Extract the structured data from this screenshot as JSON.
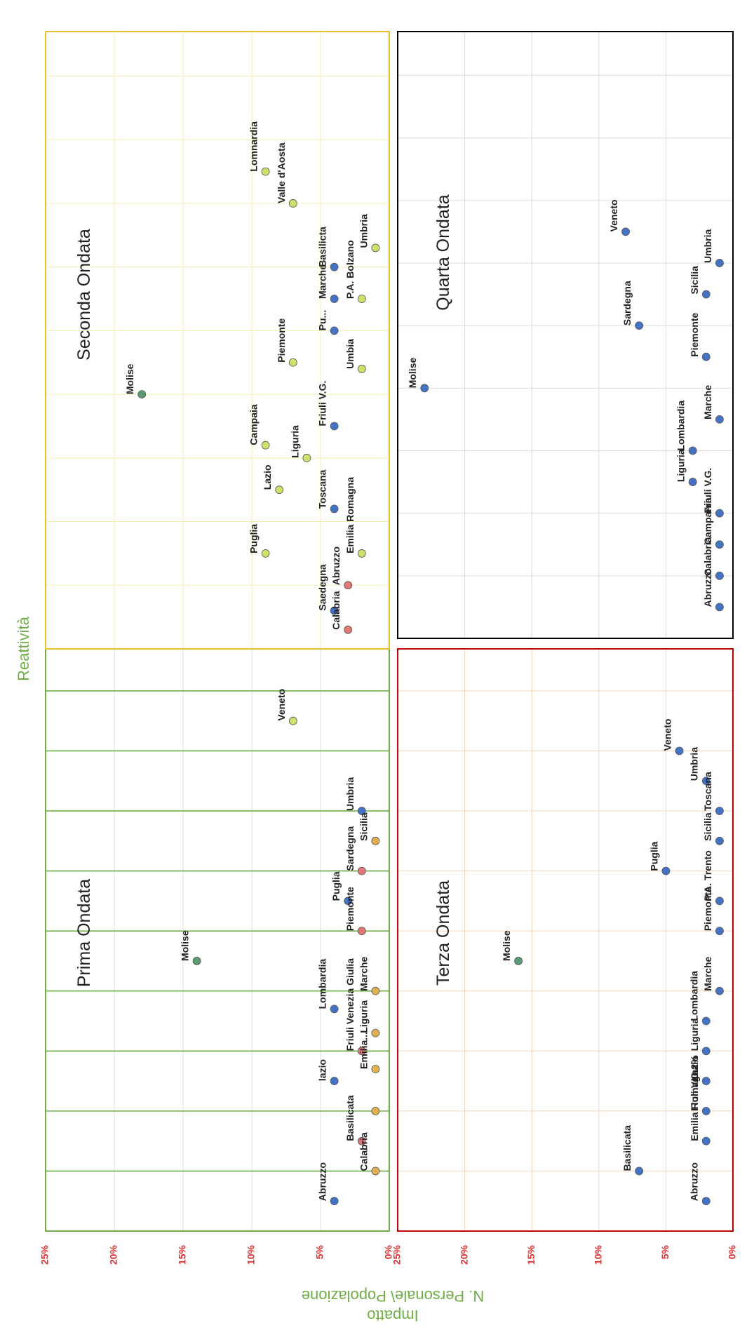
{
  "figure": {
    "title": "Reattività",
    "y_title_line1": "Impatto",
    "y_title_line2": "N. Personale\\ Popolazione",
    "y_ticks": [
      "0%",
      "5%",
      "10%",
      "15%",
      "20%",
      "25%"
    ]
  },
  "colors": {
    "blue": "#4472c4",
    "lightgreen": "#cce36b",
    "darkgreen": "#5b9b74",
    "red": "#e07777",
    "orange": "#e0b050",
    "axis_green": "#70ad47",
    "red_axis": "#e03030",
    "p1_frame": "#70ad47",
    "p2_frame": "#e6c02e",
    "p3_frame": "#c00000",
    "p4_frame": "#000000"
  },
  "chart_data": [
    {
      "type": "scatter",
      "title": "Prima Ondata",
      "ylim": [
        0,
        25
      ],
      "ylabel": "N. Personale\\ Popolazione",
      "grid": true,
      "x": [
        1,
        2,
        3,
        4,
        5,
        6,
        7,
        8,
        9,
        10,
        11
      ],
      "points": [
        {
          "label": "Abruzzo",
          "x": 0.5,
          "y": 4,
          "color": "blue"
        },
        {
          "label": "Basilicata",
          "x": 1.5,
          "y": 2,
          "color": "red"
        },
        {
          "label": "Calabria",
          "x": 1.0,
          "y": 1,
          "color": "orange"
        },
        {
          "label": "",
          "x": 2.0,
          "y": 1,
          "color": "orange"
        },
        {
          "label": "lazio",
          "x": 2.5,
          "y": 4,
          "color": "blue"
        },
        {
          "label": "Friuli Venezia Giulia",
          "x": 3.0,
          "y": 2,
          "color": "red"
        },
        {
          "label": "Emilia...",
          "x": 2.7,
          "y": 1,
          "color": "orange"
        },
        {
          "label": "Lombardia",
          "x": 3.7,
          "y": 4,
          "color": "blue"
        },
        {
          "label": "Liguria",
          "x": 3.3,
          "y": 1,
          "color": "orange"
        },
        {
          "label": "Molise",
          "x": 4.5,
          "y": 14,
          "color": "darkgreen"
        },
        {
          "label": "Marche",
          "x": 4.0,
          "y": 1,
          "color": "orange"
        },
        {
          "label": "Puglia",
          "x": 5.5,
          "y": 3,
          "color": "blue"
        },
        {
          "label": "Piemonte",
          "x": 5.0,
          "y": 2,
          "color": "red"
        },
        {
          "label": "Sardegna",
          "x": 6.0,
          "y": 2,
          "color": "red"
        },
        {
          "label": "Sicilia",
          "x": 6.5,
          "y": 1,
          "color": "orange"
        },
        {
          "label": "Umbria",
          "x": 7.0,
          "y": 2,
          "color": "blue"
        },
        {
          "label": "Veneto",
          "x": 8.5,
          "y": 7,
          "color": "lightgreen"
        }
      ]
    },
    {
      "type": "scatter",
      "title": "Seconda Ondata",
      "ylim": [
        0,
        25
      ],
      "grid": true,
      "points": [
        {
          "label": "Saedegna",
          "x": 0.6,
          "y": 4,
          "color": "blue"
        },
        {
          "label": "Calabria",
          "x": 0.3,
          "y": 3,
          "color": "red"
        },
        {
          "label": "Abruzzo",
          "x": 1.0,
          "y": 3,
          "color": "red"
        },
        {
          "label": "Puglia",
          "x": 1.5,
          "y": 9,
          "color": "lightgreen"
        },
        {
          "label": "Emilia Romagna",
          "x": 1.5,
          "y": 2,
          "color": "lightgreen"
        },
        {
          "label": "Toscana",
          "x": 2.2,
          "y": 4,
          "color": "blue"
        },
        {
          "label": "Lazio",
          "x": 2.5,
          "y": 8,
          "color": "lightgreen"
        },
        {
          "label": "Liguria",
          "x": 3.0,
          "y": 6,
          "color": "lightgreen"
        },
        {
          "label": "Campaia",
          "x": 3.2,
          "y": 9,
          "color": "lightgreen"
        },
        {
          "label": "Friuli V.G.",
          "x": 3.5,
          "y": 4,
          "color": "blue"
        },
        {
          "label": "Molise",
          "x": 4.0,
          "y": 18,
          "color": "darkgreen"
        },
        {
          "label": "Piemonte",
          "x": 4.5,
          "y": 7,
          "color": "lightgreen"
        },
        {
          "label": "Umbia",
          "x": 4.4,
          "y": 2,
          "color": "lightgreen"
        },
        {
          "label": "Pu...",
          "x": 5.0,
          "y": 4,
          "color": "blue"
        },
        {
          "label": "Marche",
          "x": 5.5,
          "y": 4,
          "color": "blue"
        },
        {
          "label": "P.A. Bolzano",
          "x": 5.5,
          "y": 2,
          "color": "lightgreen"
        },
        {
          "label": "Basilicta",
          "x": 6.0,
          "y": 4,
          "color": "blue"
        },
        {
          "label": "Umbria",
          "x": 6.3,
          "y": 1,
          "color": "lightgreen"
        },
        {
          "label": "Valle d'Aosta",
          "x": 7.0,
          "y": 7,
          "color": "lightgreen"
        },
        {
          "label": "Lomnardia",
          "x": 7.5,
          "y": 9,
          "color": "lightgreen"
        }
      ]
    },
    {
      "type": "scatter",
      "title": "Terza Ondata",
      "ylim": [
        0,
        25
      ],
      "grid": true,
      "points": [
        {
          "label": "Abruzzo",
          "x": 0.5,
          "y": 2,
          "color": "blue"
        },
        {
          "label": "Basilicata",
          "x": 1.0,
          "y": 7,
          "color": "blue"
        },
        {
          "label": "Emilia Romagna",
          "x": 1.5,
          "y": 2,
          "color": "blue"
        },
        {
          "label": "Fiuli V.G.2%",
          "x": 2.0,
          "y": 2,
          "color": "blue"
        },
        {
          "label": "Lazio",
          "x": 2.5,
          "y": 2,
          "color": "blue"
        },
        {
          "label": "Liguria",
          "x": 3.0,
          "y": 2,
          "color": "blue"
        },
        {
          "label": "Lombardia",
          "x": 3.5,
          "y": 2,
          "color": "blue"
        },
        {
          "label": "Marche",
          "x": 4.0,
          "y": 1,
          "color": "blue"
        },
        {
          "label": "Molise",
          "x": 4.5,
          "y": 16,
          "color": "darkgreen"
        },
        {
          "label": "Piemonte",
          "x": 5.0,
          "y": 1,
          "color": "blue"
        },
        {
          "label": "P.A. Trento",
          "x": 5.5,
          "y": 1,
          "color": "blue"
        },
        {
          "label": "Puglia",
          "x": 6.0,
          "y": 5,
          "color": "blue"
        },
        {
          "label": "Sicilia",
          "x": 6.5,
          "y": 1,
          "color": "blue"
        },
        {
          "label": "Toscana",
          "x": 7.0,
          "y": 1,
          "color": "blue"
        },
        {
          "label": "Umbria",
          "x": 7.5,
          "y": 2,
          "color": "blue"
        },
        {
          "label": "Veneto",
          "x": 8.0,
          "y": 4,
          "color": "blue"
        }
      ]
    },
    {
      "type": "scatter",
      "title": "Quarta Ondata",
      "ylim": [
        0,
        25
      ],
      "grid": true,
      "points": [
        {
          "label": "Abruzzo",
          "x": 0.5,
          "y": 1,
          "color": "blue"
        },
        {
          "label": "Calabria",
          "x": 1.0,
          "y": 1,
          "color": "blue"
        },
        {
          "label": "Campania",
          "x": 1.5,
          "y": 1,
          "color": "blue"
        },
        {
          "label": "Friuli V.G.",
          "x": 2.0,
          "y": 1,
          "color": "blue"
        },
        {
          "label": "Liguria",
          "x": 2.5,
          "y": 3,
          "color": "blue"
        },
        {
          "label": "Lombardia",
          "x": 3.0,
          "y": 3,
          "color": "blue"
        },
        {
          "label": "Marche",
          "x": 3.5,
          "y": 1,
          "color": "blue"
        },
        {
          "label": "Molise",
          "x": 4.0,
          "y": 23,
          "color": "blue"
        },
        {
          "label": "Piemonte",
          "x": 4.5,
          "y": 2,
          "color": "blue"
        },
        {
          "label": "Sardegna",
          "x": 5.0,
          "y": 7,
          "color": "blue"
        },
        {
          "label": "Sicilia",
          "x": 5.5,
          "y": 2,
          "color": "blue"
        },
        {
          "label": "Umbria",
          "x": 6.0,
          "y": 1,
          "color": "blue"
        },
        {
          "label": "Veneto",
          "x": 6.5,
          "y": 8,
          "color": "blue"
        }
      ]
    }
  ]
}
